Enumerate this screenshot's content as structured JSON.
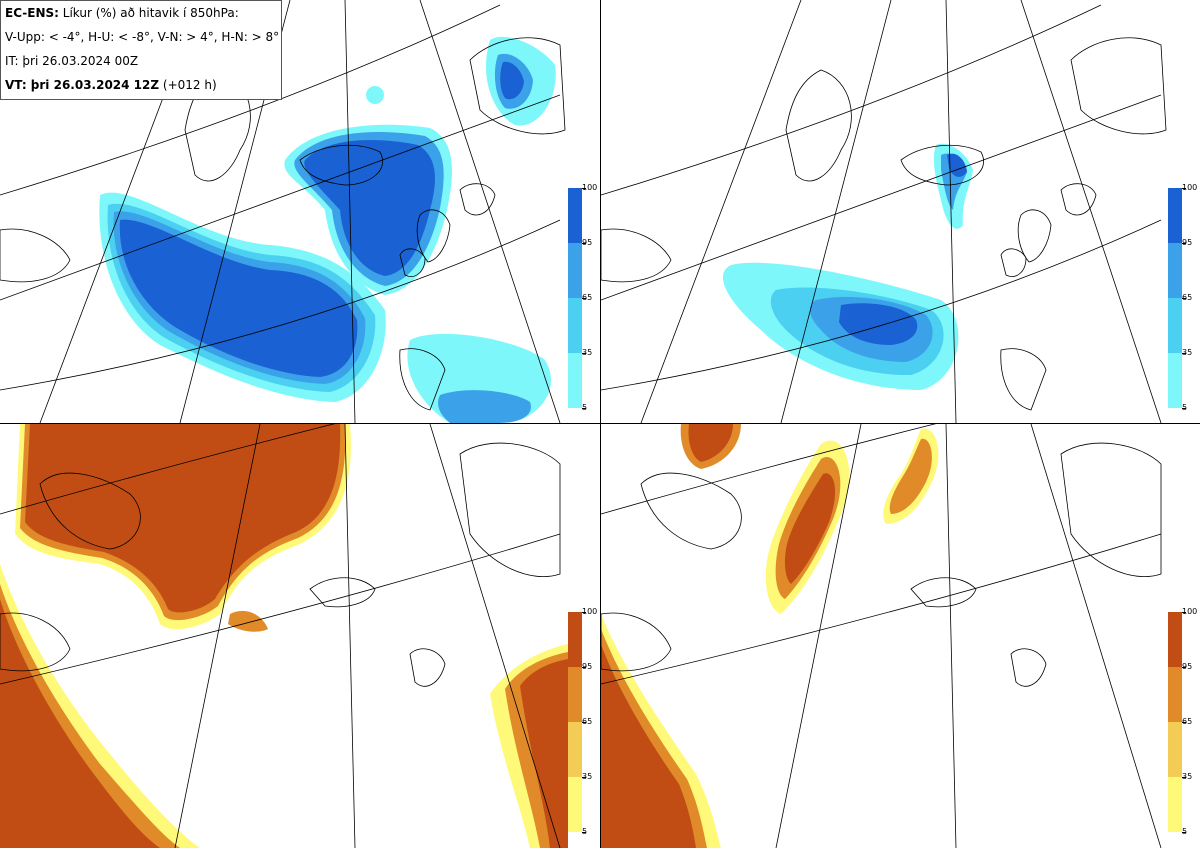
{
  "info": {
    "line1_bold": "EC-ENS:",
    "line1_rest": " Líkur (%) að hitavik í 850hPa:",
    "line2": "V-Upp: < -4°, H-U: < -8°, V-N: > 4°, H-N: > 8°",
    "line3": "IT: þri 26.03.2024 00Z",
    "line4_bold": "VT: þri 26.03.2024 12Z",
    "line4_rest": " (+012 h)"
  },
  "colors": {
    "cold_scale": [
      "#7ef7fb",
      "#4bd0f2",
      "#3ba2e9",
      "#1a62d3"
    ],
    "warm_scale": [
      "#fff97a",
      "#f2cc55",
      "#e08a2a",
      "#c14d14"
    ]
  },
  "legend_labels": [
    "100",
    "95",
    "65",
    "35",
    "5"
  ],
  "panels": [
    {
      "name": "V-Upp",
      "scale": "cold"
    },
    {
      "name": "H-U",
      "scale": "cold"
    },
    {
      "name": "V-N",
      "scale": "warm"
    },
    {
      "name": "H-N",
      "scale": "warm"
    }
  ]
}
